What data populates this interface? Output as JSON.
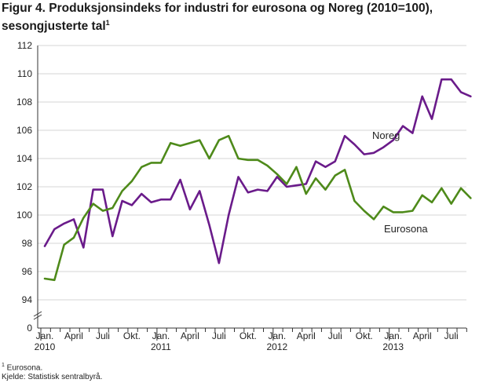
{
  "title": "Figur 4. Produksjonsindeks for industri for eurosona og Noreg (2010=100),",
  "subtitle": "sesongjusterte tal",
  "subtitle_mark": "1",
  "footnote_mark": "1",
  "footnote_text": " Eurosona.",
  "source": "Kjelde: Statistisk sentralbyrå.",
  "chart_data": {
    "type": "line",
    "ylim": [
      94,
      112
    ],
    "y_ticks": [
      94,
      96,
      98,
      100,
      102,
      104,
      106,
      108,
      110,
      112
    ],
    "y_zero_label": "0",
    "axis_break": true,
    "x_range": [
      0,
      43
    ],
    "x_tick_labels": [
      {
        "i": 0,
        "line1": "Jan.",
        "line2": "2010"
      },
      {
        "i": 3,
        "line1": "April",
        "line2": ""
      },
      {
        "i": 6,
        "line1": "Juli",
        "line2": ""
      },
      {
        "i": 9,
        "line1": "Okt.",
        "line2": ""
      },
      {
        "i": 12,
        "line1": "Jan.",
        "line2": "2011"
      },
      {
        "i": 15,
        "line1": "April",
        "line2": ""
      },
      {
        "i": 18,
        "line1": "Juli",
        "line2": ""
      },
      {
        "i": 21,
        "line1": "Okt.",
        "line2": ""
      },
      {
        "i": 24,
        "line1": "Jan.",
        "line2": "2012"
      },
      {
        "i": 27,
        "line1": "April",
        "line2": ""
      },
      {
        "i": 30,
        "line1": "Juli",
        "line2": ""
      },
      {
        "i": 33,
        "line1": "Okt.",
        "line2": ""
      },
      {
        "i": 36,
        "line1": "Jan.",
        "line2": "2013"
      },
      {
        "i": 39,
        "line1": "April",
        "line2": ""
      },
      {
        "i": 42,
        "line1": "Juli",
        "line2": ""
      }
    ],
    "grid": "horizontal",
    "series": [
      {
        "name": "Noreg",
        "color": "#6a1b8a",
        "values": [
          97.8,
          99.0,
          99.4,
          99.7,
          97.7,
          101.8,
          101.8,
          98.5,
          101.0,
          100.7,
          101.5,
          100.9,
          101.1,
          101.1,
          102.5,
          100.4,
          101.7,
          99.3,
          96.6,
          100.0,
          102.7,
          101.6,
          101.8,
          101.7,
          102.7,
          102.0,
          102.1,
          102.2,
          103.8,
          103.4,
          103.8,
          105.6,
          105.0,
          104.3,
          104.4,
          104.8,
          105.3,
          106.3,
          105.8,
          108.4,
          106.8,
          109.6,
          109.6,
          108.7,
          108.4
        ]
      },
      {
        "name": "Eurosona",
        "color": "#4e8a1a",
        "values": [
          95.5,
          95.4,
          97.9,
          98.4,
          99.8,
          100.8,
          100.3,
          100.5,
          101.7,
          102.4,
          103.4,
          103.7,
          103.7,
          105.1,
          104.9,
          105.1,
          105.3,
          104.0,
          105.3,
          105.6,
          104.0,
          103.9,
          103.9,
          103.5,
          102.9,
          102.2,
          103.4,
          101.5,
          102.6,
          101.8,
          102.8,
          103.2,
          101.0,
          100.3,
          99.7,
          100.6,
          100.2,
          100.2,
          100.3,
          101.4,
          100.9,
          101.9,
          100.8,
          101.9,
          101.2
        ]
      }
    ]
  }
}
